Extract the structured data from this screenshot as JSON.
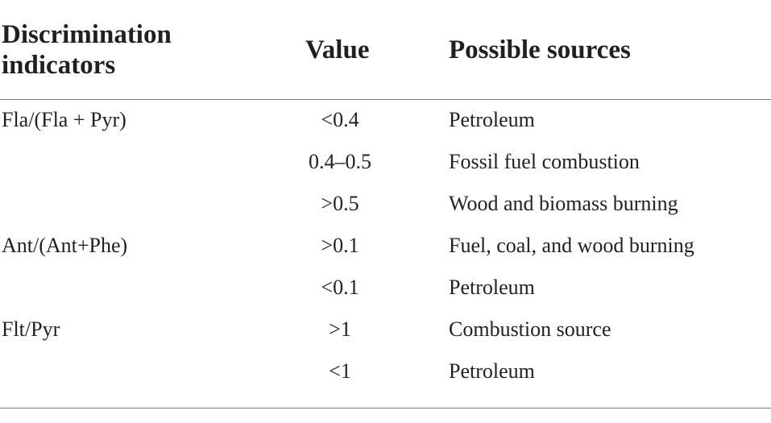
{
  "table": {
    "headers": {
      "indicator": "Discrimination indicators",
      "value": "Value",
      "sources": "Possible sources"
    },
    "rows": [
      {
        "indicator": "Fla/(Fla + Pyr)",
        "value": "<0.4",
        "source": "Petroleum"
      },
      {
        "indicator": "",
        "value": "0.4–0.5",
        "source": "Fossil fuel combustion"
      },
      {
        "indicator": "",
        "value": ">0.5",
        "source": "Wood and biomass burning"
      },
      {
        "indicator": "Ant/(Ant+Phe)",
        "value": ">0.1",
        "source": "Fuel, coal, and wood burning"
      },
      {
        "indicator": "",
        "value": "<0.1",
        "source": "Petroleum"
      },
      {
        "indicator": "Flt/Pyr",
        "value": ">1",
        "source": "Combustion source"
      },
      {
        "indicator": "",
        "value": "<1",
        "source": "Petroleum"
      }
    ]
  }
}
